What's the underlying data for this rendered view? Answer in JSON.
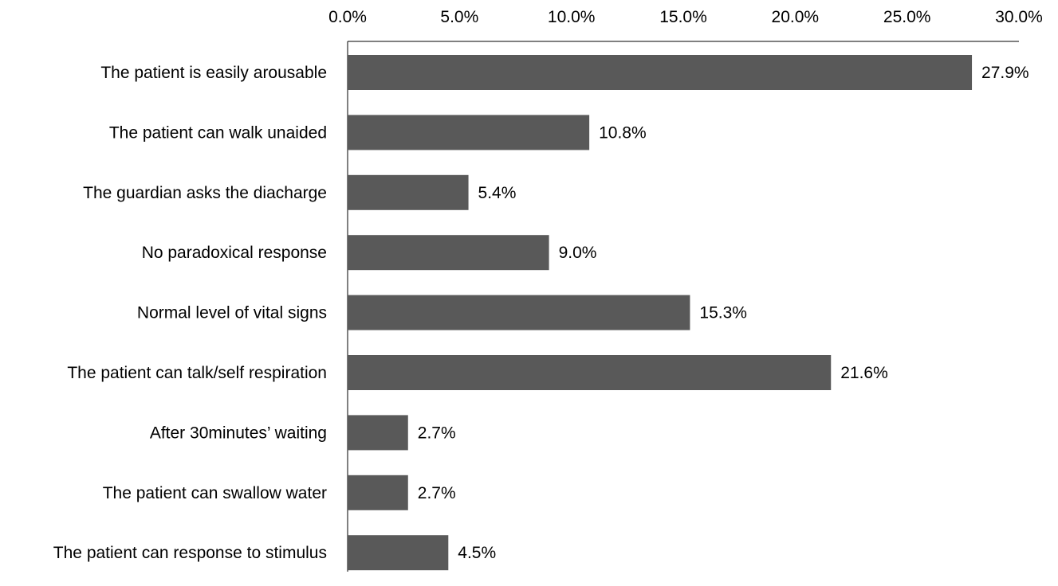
{
  "chart_data": {
    "type": "bar",
    "orientation": "horizontal",
    "categories": [
      "The patient is easily arousable",
      "The patient can walk unaided",
      "The guardian asks the diacharge",
      "No paradoxical response",
      "Normal level of vital signs",
      "The patient can talk/self respiration",
      "After 30minutes’ waiting",
      "The patient can swallow water",
      "The patient can response to stimulus"
    ],
    "values": [
      27.9,
      10.8,
      5.4,
      9.0,
      15.3,
      21.6,
      2.7,
      2.7,
      4.5
    ],
    "value_labels": [
      "27.9%",
      "10.8%",
      "5.4%",
      "9.0%",
      "15.3%",
      "21.6%",
      "2.7%",
      "2.7%",
      "4.5%"
    ],
    "xlim": [
      0,
      30
    ],
    "x_ticks": [
      0,
      5,
      10,
      15,
      20,
      25,
      30
    ],
    "x_tick_labels": [
      "0.0%",
      "5.0%",
      "10.0%",
      "15.0%",
      "20.0%",
      "25.0%",
      "30.0%"
    ],
    "axis_position": "top",
    "grid": false,
    "bar_color": "#595959",
    "axis_color": "#000000",
    "title": "",
    "xlabel": "",
    "ylabel": ""
  }
}
